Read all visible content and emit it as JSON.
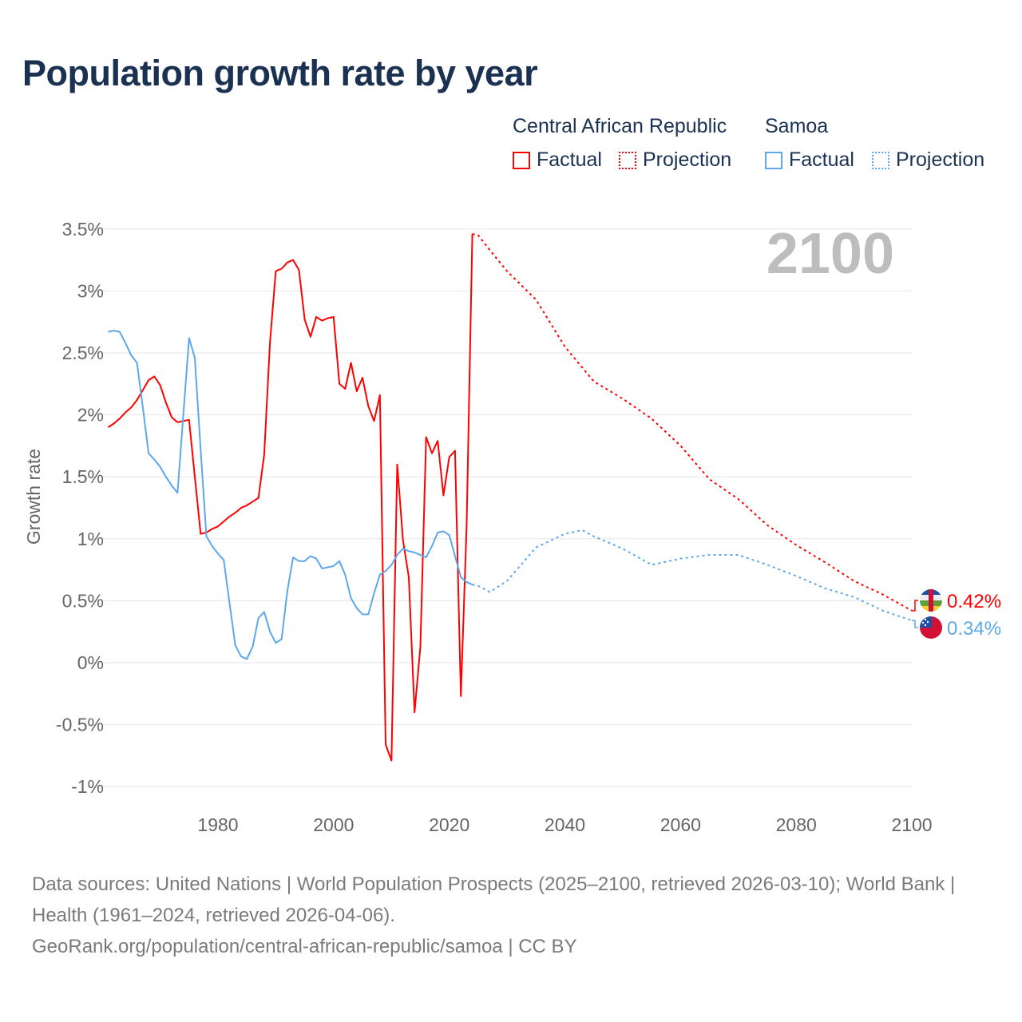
{
  "title": "Population growth rate by year",
  "legend": {
    "groups": [
      {
        "name": "Central African Republic",
        "factual": "Factual",
        "projection": "Projection",
        "color": "#ff0000"
      },
      {
        "name": "Samoa",
        "factual": "Factual",
        "projection": "Projection",
        "color": "#5ca8ea"
      }
    ]
  },
  "footer": {
    "line1": "Data sources: United Nations | World Population Prospects (2025–2100, retrieved 2026-03-10); World Bank | Health (1961–2024, retrieved 2026-04-06).",
    "line2": "GeoRank.org/population/central-african-republic/samoa | CC BY"
  },
  "chart_data": {
    "type": "line",
    "title": "Population growth rate by year",
    "xlabel": "",
    "ylabel": "Growth rate",
    "xlim": [
      1961,
      2100
    ],
    "ylim": [
      -1,
      3.5
    ],
    "x_ticks": [
      "1980",
      "2000",
      "2020",
      "2040",
      "2060",
      "2080",
      "2100"
    ],
    "x_tick_values": [
      1980,
      2000,
      2020,
      2040,
      2060,
      2080,
      2100
    ],
    "y_ticks": [
      "3.5%",
      "3%",
      "2.5%",
      "2%",
      "1.5%",
      "1%",
      "0.5%",
      "0%",
      "-0.5%",
      "-1%"
    ],
    "y_tick_values": [
      3.5,
      3,
      2.5,
      2,
      1.5,
      1,
      0.5,
      0,
      -0.5,
      -1
    ],
    "grid": true,
    "legend_position": "top-right",
    "year_watermark": "2100",
    "series": [
      {
        "name": "Central African Republic – Factual",
        "color": "#ff0000",
        "style": "solid",
        "x": [
          1961,
          1962,
          1963,
          1964,
          1965,
          1966,
          1967,
          1968,
          1969,
          1970,
          1971,
          1972,
          1973,
          1974,
          1975,
          1976,
          1977,
          1978,
          1979,
          1980,
          1981,
          1982,
          1983,
          1984,
          1985,
          1986,
          1987,
          1988,
          1989,
          1990,
          1991,
          1992,
          1993,
          1994,
          1995,
          1996,
          1997,
          1998,
          1999,
          2000,
          2001,
          2002,
          2003,
          2004,
          2005,
          2006,
          2007,
          2008,
          2009,
          2010,
          2011,
          2012,
          2013,
          2014,
          2015,
          2016,
          2017,
          2018,
          2019,
          2020,
          2021,
          2022,
          2023,
          2024
        ],
        "y": [
          1.9,
          1.93,
          1.97,
          2.02,
          2.06,
          2.12,
          2.2,
          2.28,
          2.31,
          2.24,
          2.1,
          1.98,
          1.94,
          1.95,
          1.96,
          1.5,
          1.04,
          1.05,
          1.08,
          1.1,
          1.14,
          1.18,
          1.21,
          1.25,
          1.27,
          1.3,
          1.33,
          1.68,
          2.59,
          3.16,
          3.18,
          3.23,
          3.25,
          3.17,
          2.77,
          2.63,
          2.79,
          2.76,
          2.78,
          2.79,
          2.25,
          2.21,
          2.42,
          2.19,
          2.3,
          2.07,
          1.95,
          2.16,
          -0.66,
          -0.79,
          1.6,
          0.99,
          0.69,
          -0.4,
          0.13,
          1.82,
          1.69,
          1.79,
          1.35,
          1.66,
          1.71,
          -0.27,
          1.1,
          3.46
        ]
      },
      {
        "name": "Central African Republic – Projection",
        "color": "#ff0000",
        "style": "dotted",
        "x": [
          2024,
          2025,
          2027,
          2030,
          2035,
          2040,
          2045,
          2050,
          2055,
          2060,
          2065,
          2070,
          2075,
          2080,
          2085,
          2090,
          2095,
          2100
        ],
        "y": [
          3.46,
          3.45,
          3.33,
          3.16,
          2.93,
          2.55,
          2.27,
          2.13,
          1.97,
          1.75,
          1.48,
          1.32,
          1.11,
          0.95,
          0.81,
          0.66,
          0.55,
          0.42
        ],
        "end_label": "0.42%"
      },
      {
        "name": "Samoa – Factual",
        "color": "#5ca8ea",
        "style": "solid",
        "x": [
          1961,
          1962,
          1963,
          1964,
          1965,
          1966,
          1967,
          1968,
          1969,
          1970,
          1971,
          1972,
          1973,
          1974,
          1975,
          1976,
          1977,
          1978,
          1979,
          1980,
          1981,
          1982,
          1983,
          1984,
          1985,
          1986,
          1987,
          1988,
          1989,
          1990,
          1991,
          1992,
          1993,
          1994,
          1995,
          1996,
          1997,
          1998,
          1999,
          2000,
          2001,
          2002,
          2003,
          2004,
          2005,
          2006,
          2007,
          2008,
          2009,
          2010,
          2011,
          2012,
          2013,
          2014,
          2015,
          2016,
          2017,
          2018,
          2019,
          2020,
          2021,
          2022,
          2023,
          2024
        ],
        "y": [
          2.67,
          2.68,
          2.67,
          2.58,
          2.48,
          2.42,
          2.06,
          1.69,
          1.64,
          1.58,
          1.5,
          1.43,
          1.37,
          1.99,
          2.62,
          2.46,
          1.72,
          1.02,
          0.94,
          0.88,
          0.83,
          0.48,
          0.14,
          0.05,
          0.03,
          0.13,
          0.36,
          0.41,
          0.25,
          0.16,
          0.19,
          0.58,
          0.85,
          0.82,
          0.82,
          0.86,
          0.84,
          0.76,
          0.77,
          0.78,
          0.82,
          0.71,
          0.52,
          0.44,
          0.39,
          0.39,
          0.56,
          0.71,
          0.74,
          0.79,
          0.87,
          0.92,
          0.9,
          0.89,
          0.87,
          0.85,
          0.94,
          1.05,
          1.06,
          1.03,
          0.86,
          0.69,
          0.65,
          0.63
        ]
      },
      {
        "name": "Samoa – Projection",
        "color": "#5ca8ea",
        "style": "dotted",
        "x": [
          2024,
          2025,
          2027,
          2030,
          2035,
          2040,
          2043,
          2045,
          2050,
          2055,
          2060,
          2065,
          2070,
          2075,
          2080,
          2085,
          2090,
          2095,
          2100
        ],
        "y": [
          0.63,
          0.62,
          0.57,
          0.66,
          0.93,
          1.04,
          1.07,
          1.02,
          0.92,
          0.79,
          0.84,
          0.87,
          0.87,
          0.79,
          0.7,
          0.6,
          0.53,
          0.42,
          0.34
        ],
        "end_label": "0.34%"
      }
    ]
  }
}
